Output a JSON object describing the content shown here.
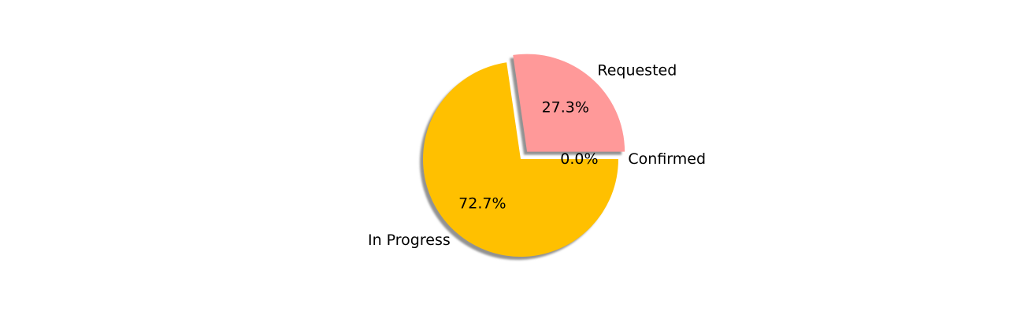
{
  "chart_data": {
    "type": "pie",
    "labels": [
      "Confirmed",
      "Requested",
      "In Progress"
    ],
    "values": [
      0.0,
      27.3,
      72.7
    ],
    "percent_labels": [
      "0.0%",
      "27.3%",
      "72.7%"
    ],
    "colors": [
      "#66b3ff",
      "#ff9999",
      "#ffc000"
    ],
    "explode": [
      0.0,
      0.1,
      0.0
    ],
    "shadow": true,
    "start_angle_deg": 0,
    "direction": "counterclockwise",
    "title": "",
    "legend": "none"
  }
}
